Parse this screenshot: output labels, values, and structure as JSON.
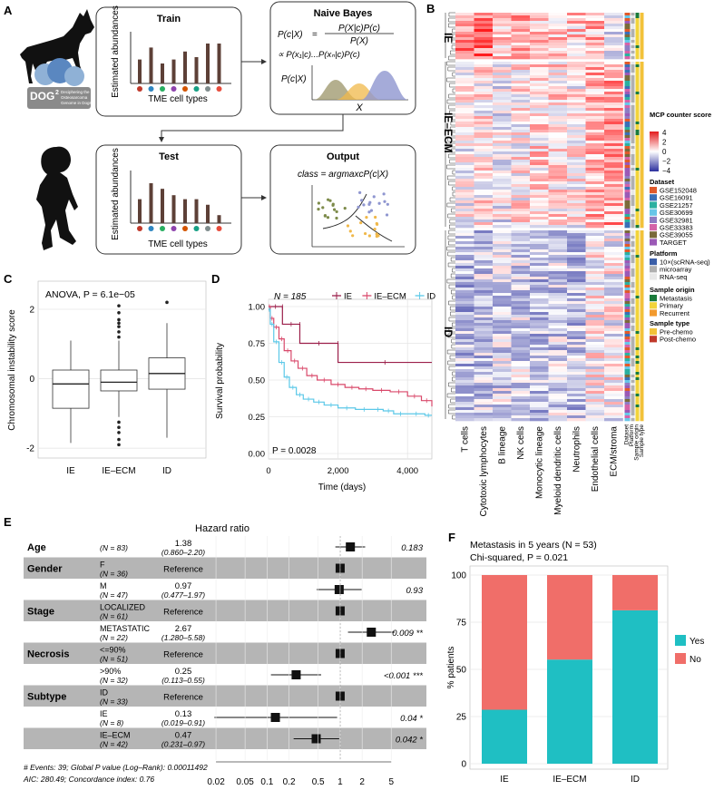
{
  "panel_letters": [
    "A",
    "B",
    "C",
    "D",
    "E",
    "F"
  ],
  "panelA": {
    "train_title": "Train",
    "train_ylabel": "Estimated abundances",
    "train_xlabel": "TME cell types",
    "train_values": [
      3,
      4.5,
      2.5,
      3,
      4,
      3.3,
      5,
      5
    ],
    "naive_title": "Naive Bayes",
    "naive_eq1_lhs": "P(c|X)",
    "naive_eq1_num": "P(X|c)P(c)",
    "naive_eq1_den": "P(X)",
    "naive_eq2": "∝ P(x₁|c)...P(xₙ|c)P(c)",
    "naive_density_label": "P(c|X)",
    "naive_x": "X",
    "test_title": "Test",
    "test_ylabel": "Estimated abundances",
    "test_xlabel": "TME cell types",
    "test_values": [
      3,
      5,
      4.3,
      3.5,
      3,
      3,
      2.3,
      1
    ],
    "output_title": "Output",
    "output_eq": "class = argmaxᴄP(c|X)",
    "dog2_line1": "DOG",
    "dog2_sup": "2",
    "dog2_line2": "Deciphering the",
    "dog2_line3": "Osteosarcoma",
    "dog2_line4": "Genome in Dogs"
  },
  "panelB": {
    "cluster_labels": [
      "IE",
      "IE–ECM",
      "ID"
    ],
    "columns": [
      "T cells",
      "Cytotoxic lymphocytes",
      "B lineage",
      "NK cells",
      "Monocytic lineage",
      "Myeloid dendritic cells",
      "Neutrophils",
      "Endothelial cells",
      "ECM/stroma"
    ],
    "annot_columns": [
      "Dataset",
      "Platform",
      "Sample origin",
      "Sample type"
    ],
    "legend_score_title": "MCP counter score",
    "legend_score_ticks": [
      "4",
      "2",
      "0",
      "−2",
      "−4"
    ],
    "legend_dataset_title": "Dataset",
    "datasets": [
      {
        "label": "GSE152048",
        "color": "#e05a2b"
      },
      {
        "label": "GSE16091",
        "color": "#3a6fb7"
      },
      {
        "label": "GSE21257",
        "color": "#2bb0a0"
      },
      {
        "label": "GSE30699",
        "color": "#67c6e8"
      },
      {
        "label": "GSE32981",
        "color": "#8e7cc3"
      },
      {
        "label": "GSE33383",
        "color": "#d463a8"
      },
      {
        "label": "GSE39055",
        "color": "#7a6a3a"
      },
      {
        "label": "TARGET",
        "color": "#9b59b6"
      }
    ],
    "legend_platform_title": "Platform",
    "platforms": [
      {
        "label": "10×(scRNA-seq)",
        "color": "#3b5fa8"
      },
      {
        "label": "microarray",
        "color": "#b0b0b0"
      },
      {
        "label": "RNA-seq",
        "color": "#e8e8e8"
      }
    ],
    "legend_origin_title": "Sample origin",
    "origins": [
      {
        "label": "Metastasis",
        "color": "#1a7a3a"
      },
      {
        "label": "Primary",
        "color": "#f2d43a"
      },
      {
        "label": "Recurrent",
        "color": "#f29a2e"
      }
    ],
    "legend_type_title": "Sample type",
    "types": [
      {
        "label": "Pre-chemo",
        "color": "#f2c23a"
      },
      {
        "label": "Post-chemo",
        "color": "#c0392b"
      }
    ]
  },
  "panelC": {
    "title": "ANOVA, P = 6.1e−05",
    "chart_data": {
      "type": "box",
      "ylabel": "Chromosomal instability score",
      "categories": [
        "IE",
        "IE–ECM",
        "ID"
      ],
      "ylim": [
        -2.1,
        2.6
      ],
      "yticks": [
        -2,
        0,
        2
      ],
      "boxes": [
        {
          "name": "IE",
          "q1": -0.85,
          "median": -0.15,
          "q3": 0.25,
          "whisker_low": -1.85,
          "whisker_high": 1.1,
          "outliers": []
        },
        {
          "name": "IE–ECM",
          "q1": -0.35,
          "median": -0.1,
          "q3": 0.25,
          "whisker_low": -1.1,
          "whisker_high": 1.1,
          "outliers": [
            2.1,
            1.9,
            1.7,
            1.6,
            1.5,
            1.35,
            1.2,
            -1.25,
            -1.4,
            -1.55,
            -1.75,
            -1.9
          ]
        },
        {
          "name": "ID",
          "q1": -0.3,
          "median": 0.15,
          "q3": 0.6,
          "whisker_low": -1.7,
          "whisker_high": 1.6,
          "outliers": [
            2.2
          ]
        }
      ]
    }
  },
  "panelD": {
    "n_label": "N = 185",
    "p_label": "P = 0.0028",
    "chart_data": {
      "type": "line",
      "ylabel": "Survival probability",
      "xlabel": "Time (days)",
      "xlim": [
        0,
        4700
      ],
      "ylim": [
        0,
        1
      ],
      "xticks": [
        0,
        2000,
        4000
      ],
      "xtick_labels": [
        "0",
        "2,000",
        "4,000"
      ],
      "yticks": [
        0,
        0.25,
        0.5,
        0.75,
        1.0
      ],
      "ytick_labels": [
        "0.00",
        "0.25",
        "0.50",
        "0.75",
        "1.00"
      ],
      "series": [
        {
          "name": "IE",
          "color": "#9b1f4a",
          "x": [
            0,
            400,
            400,
            900,
            900,
            2000,
            2000,
            4700
          ],
          "y": [
            1.0,
            1.0,
            0.88,
            0.88,
            0.75,
            0.75,
            0.62,
            0.62
          ]
        },
        {
          "name": "IE–ECM",
          "color": "#d9486a",
          "x": [
            0,
            50,
            150,
            300,
            450,
            650,
            850,
            1100,
            1400,
            1800,
            2200,
            2600,
            3000,
            3500,
            4000,
            4400,
            4700
          ],
          "y": [
            1.0,
            0.92,
            0.86,
            0.78,
            0.7,
            0.63,
            0.58,
            0.53,
            0.5,
            0.47,
            0.45,
            0.44,
            0.43,
            0.42,
            0.39,
            0.36,
            0.32
          ]
        },
        {
          "name": "ID",
          "color": "#5bc8e8",
          "x": [
            0,
            50,
            150,
            300,
            450,
            600,
            800,
            1000,
            1300,
            1600,
            2000,
            2500,
            3000,
            3300,
            3600,
            4000,
            4500,
            4700
          ],
          "y": [
            0.98,
            0.88,
            0.76,
            0.62,
            0.52,
            0.45,
            0.4,
            0.37,
            0.35,
            0.33,
            0.31,
            0.3,
            0.3,
            0.29,
            0.27,
            0.27,
            0.26,
            0.26
          ]
        }
      ]
    }
  },
  "panelE": {
    "title": "Hazard ratio",
    "rows": [
      {
        "var": "Age",
        "level": "",
        "n": "(N = 83)",
        "est": "1.38",
        "ci": "(0.860–2.20)",
        "p": "0.183",
        "sig": "",
        "hr": 1.38,
        "lo": 0.86,
        "hi": 2.2,
        "shade": false
      },
      {
        "var": "Gender",
        "level": "F",
        "n": "(N = 36)",
        "est": "Reference",
        "ci": "",
        "p": "",
        "sig": "",
        "hr": 1.0,
        "lo": 1.0,
        "hi": 1.0,
        "shade": true
      },
      {
        "var": "",
        "level": "M",
        "n": "(N = 47)",
        "est": "0.97",
        "ci": "(0.477–1.97)",
        "p": "0.93",
        "sig": "",
        "hr": 0.97,
        "lo": 0.477,
        "hi": 1.97,
        "shade": false
      },
      {
        "var": "Stage",
        "level": "LOCALIZED",
        "n": "(N = 61)",
        "est": "Reference",
        "ci": "",
        "p": "",
        "sig": "",
        "hr": 1.0,
        "lo": 1.0,
        "hi": 1.0,
        "shade": true
      },
      {
        "var": "",
        "level": "METASTATIC",
        "n": "(N = 22)",
        "est": "2.67",
        "ci": "(1.280–5.58)",
        "p": "0.009",
        "sig": "**",
        "hr": 2.67,
        "lo": 1.28,
        "hi": 5.58,
        "shade": false
      },
      {
        "var": "Necrosis",
        "level": "<=90%",
        "n": "(N = 51)",
        "est": "Reference",
        "ci": "",
        "p": "",
        "sig": "",
        "hr": 1.0,
        "lo": 1.0,
        "hi": 1.0,
        "shade": true
      },
      {
        "var": "",
        "level": ">90%",
        "n": "(N = 32)",
        "est": "0.25",
        "ci": "(0.113–0.55)",
        "p": "<0.001",
        "sig": "***",
        "hr": 0.25,
        "lo": 0.113,
        "hi": 0.55,
        "shade": false
      },
      {
        "var": "Subtype",
        "level": "ID",
        "n": "(N = 33)",
        "est": "Reference",
        "ci": "",
        "p": "",
        "sig": "",
        "hr": 1.0,
        "lo": 1.0,
        "hi": 1.0,
        "shade": true
      },
      {
        "var": "",
        "level": "IE",
        "n": "(N = 8)",
        "est": "0.13",
        "ci": "(0.019–0.91)",
        "p": "0.04",
        "sig": "*",
        "hr": 0.13,
        "lo": 0.019,
        "hi": 0.91,
        "shade": false
      },
      {
        "var": "",
        "level": "IE–ECM",
        "n": "(N = 42)",
        "est": "0.47",
        "ci": "(0.231–0.97)",
        "p": "0.042",
        "sig": "*",
        "hr": 0.47,
        "lo": 0.231,
        "hi": 0.97,
        "shade": true
      }
    ],
    "xticks": [
      0.02,
      0.05,
      0.1,
      0.2,
      0.5,
      1,
      2,
      5
    ],
    "xtick_labels": [
      "0.02",
      "0.05",
      "0.1",
      "0.2",
      "0.5",
      "1",
      "2",
      "5"
    ],
    "footer1": "# Events: 39; Global P value (Log–Rank): 0.00011492",
    "footer2": "AIC: 280.49; Concordance index: 0.76"
  },
  "panelF": {
    "title1": "Metastasis in 5 years (N = 53)",
    "title2": "Chi-squared, P = 0.021",
    "chart_data": {
      "type": "bar",
      "stacked": true,
      "ylabel": "% patients",
      "categories": [
        "IE",
        "IE–ECM",
        "ID"
      ],
      "ylim": [
        0,
        100
      ],
      "yticks": [
        0,
        25,
        50,
        75,
        100
      ],
      "series": [
        {
          "name": "Yes",
          "color": "#1fbfc3",
          "values": [
            28.6,
            55.2,
            81.3
          ]
        },
        {
          "name": "No",
          "color": "#f06e69",
          "values": [
            71.4,
            44.8,
            18.7
          ]
        }
      ],
      "legend": [
        "Yes",
        "No"
      ]
    }
  }
}
